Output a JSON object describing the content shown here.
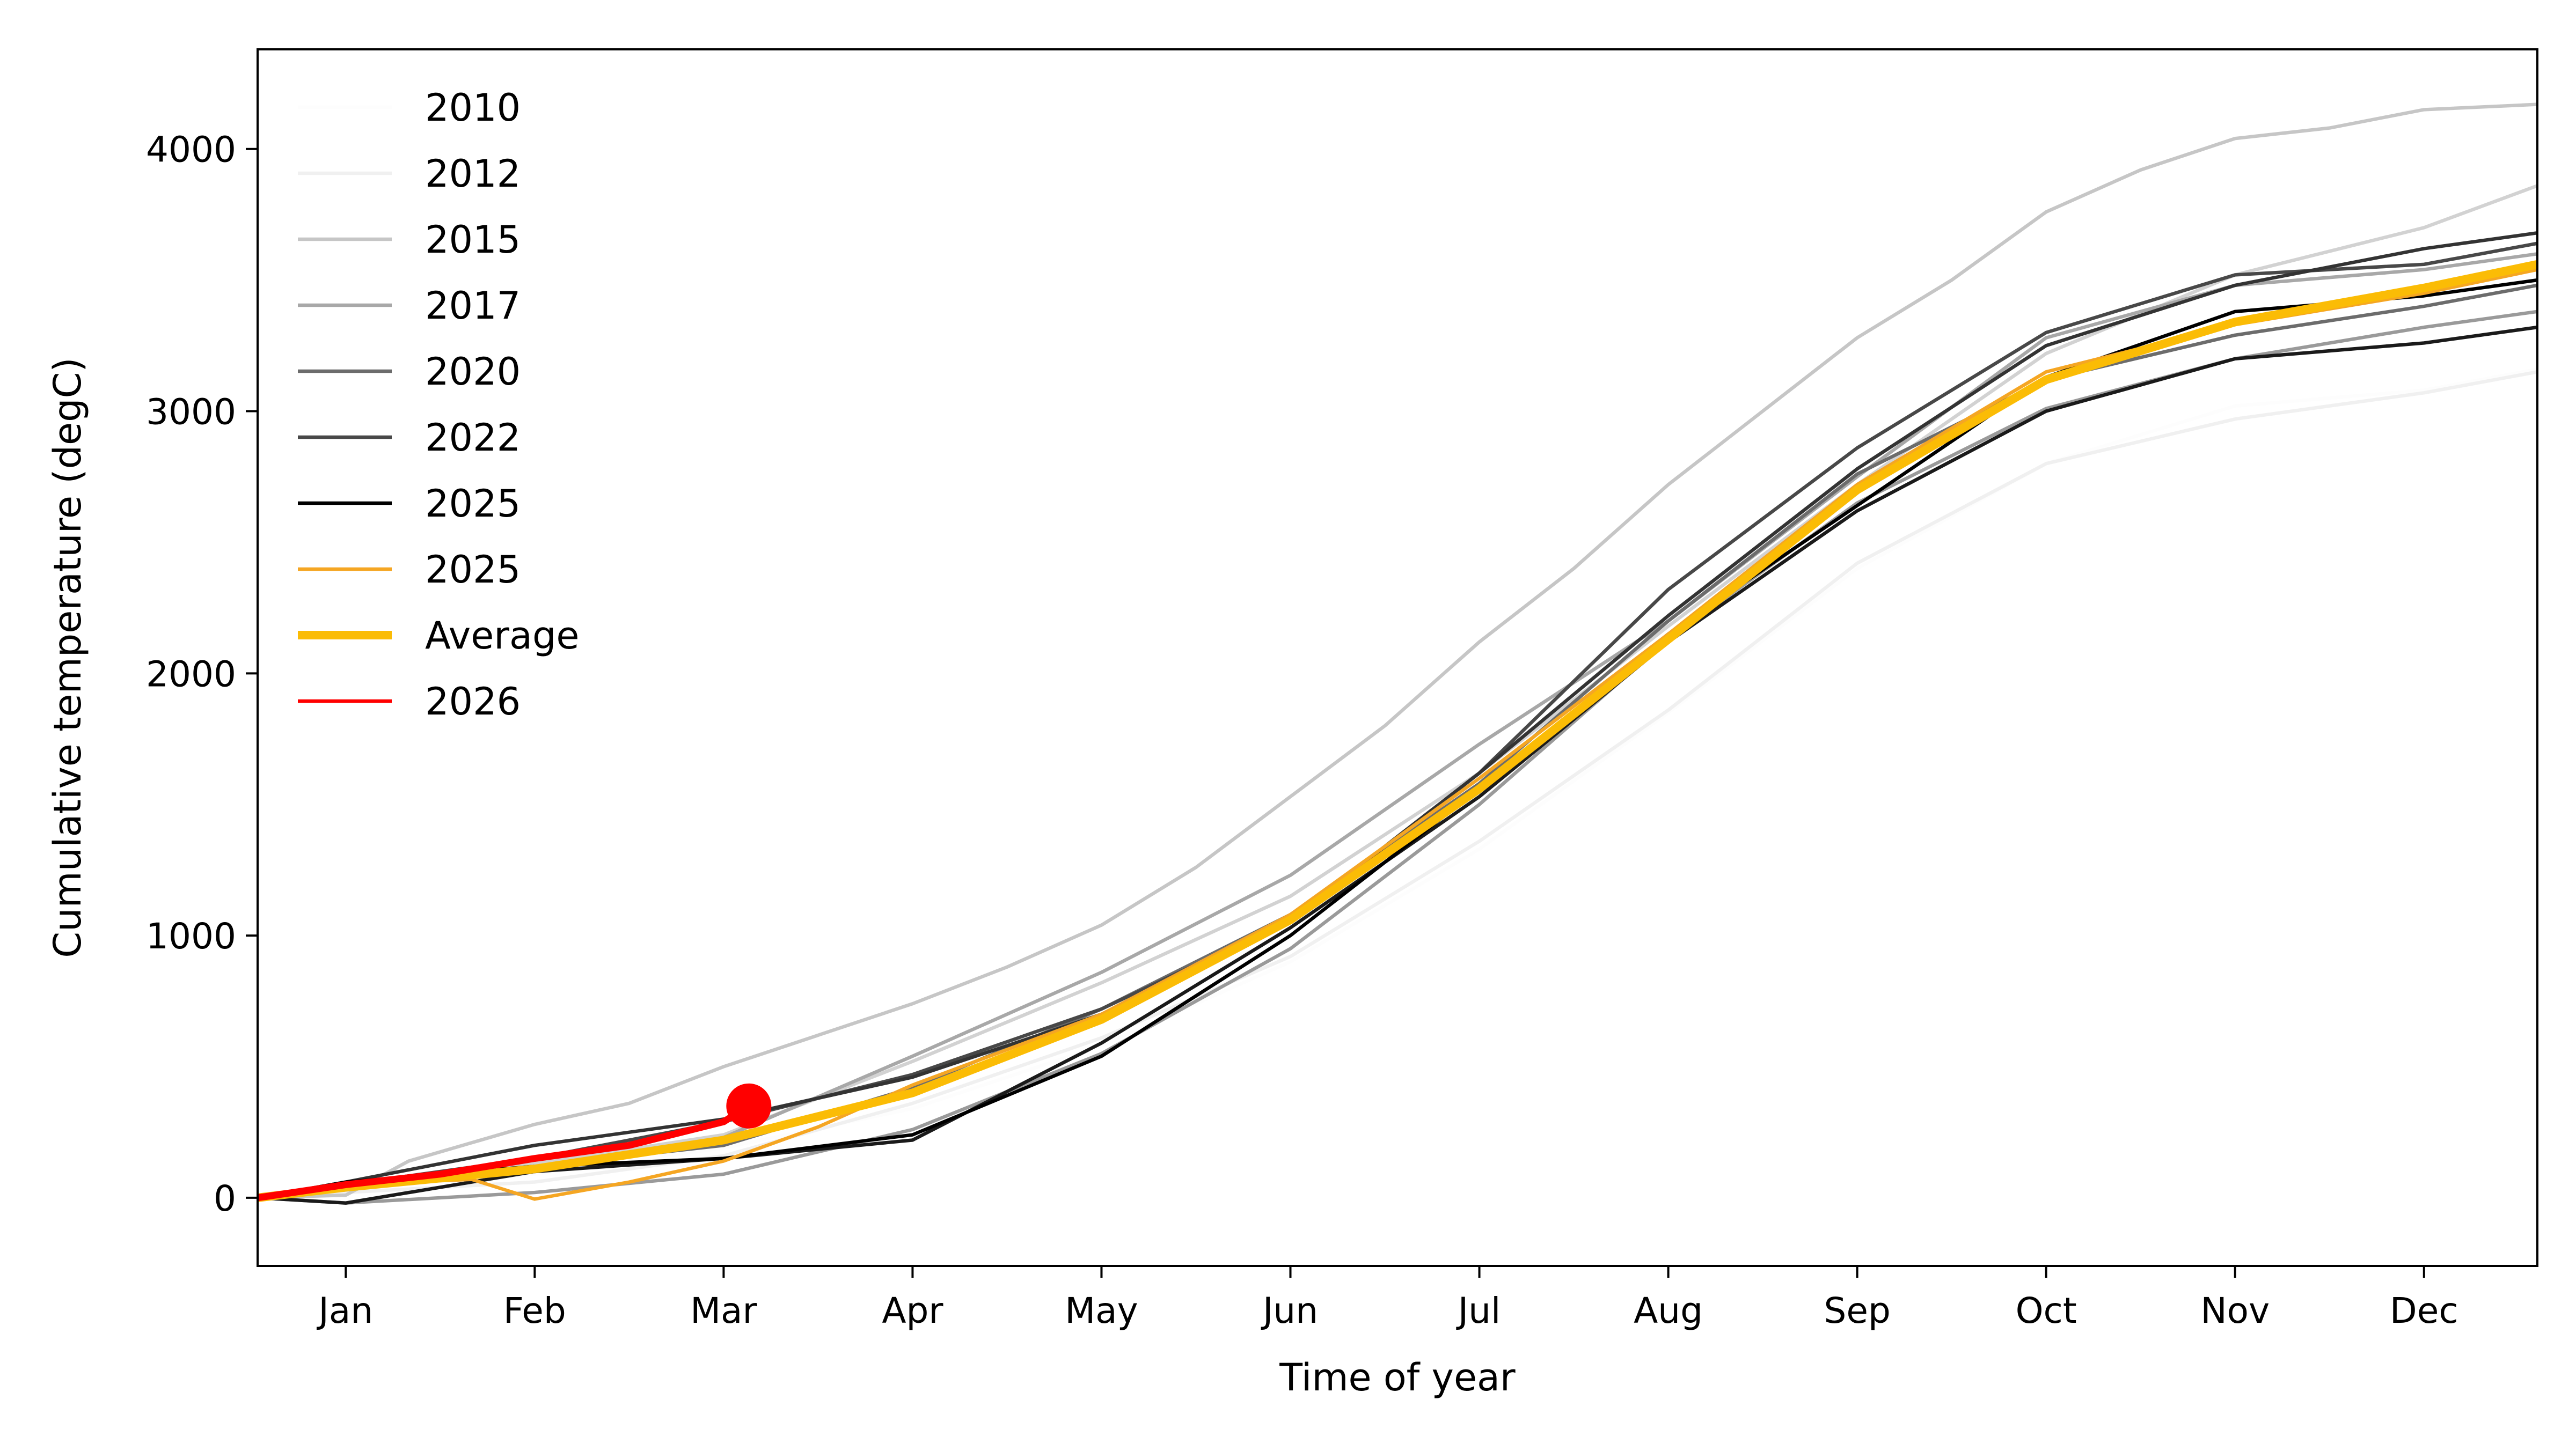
{
  "chart_data": {
    "type": "line",
    "title": "",
    "xlabel": "Time of year",
    "ylabel": "Cumulative temperature (degC)",
    "x_unit": "day of year",
    "xlim": [
      -14,
      348
    ],
    "ylim": [
      -260,
      4380
    ],
    "x_ticks": [
      {
        "label": "Jan",
        "day": 0
      },
      {
        "label": "Feb",
        "day": 30
      },
      {
        "label": "Mar",
        "day": 60
      },
      {
        "label": "Apr",
        "day": 90
      },
      {
        "label": "May",
        "day": 120
      },
      {
        "label": "Jun",
        "day": 150
      },
      {
        "label": "Jul",
        "day": 180
      },
      {
        "label": "Aug",
        "day": 210
      },
      {
        "label": "Sep",
        "day": 240
      },
      {
        "label": "Oct",
        "day": 270
      },
      {
        "label": "Nov",
        "day": 300
      },
      {
        "label": "Dec",
        "day": 330
      }
    ],
    "y_ticks": [
      0,
      1000,
      2000,
      3000,
      4000
    ],
    "grid": false,
    "legend_position": "upper-left",
    "series": [
      {
        "name": "2010",
        "color": "#fdfdfd",
        "width": 2,
        "points": [
          [
            -14,
            0
          ],
          [
            0,
            30
          ],
          [
            30,
            90
          ],
          [
            60,
            190
          ],
          [
            90,
            340
          ],
          [
            120,
            580
          ],
          [
            150,
            900
          ],
          [
            180,
            1330
          ],
          [
            210,
            1850
          ],
          [
            240,
            2400
          ],
          [
            270,
            2800
          ],
          [
            300,
            3020
          ],
          [
            330,
            3080
          ],
          [
            348,
            3160
          ]
        ]
      },
      {
        "name": "2012",
        "color": "#f0f0f0",
        "width": 2,
        "points": [
          [
            -14,
            0
          ],
          [
            0,
            20
          ],
          [
            30,
            60
          ],
          [
            60,
            160
          ],
          [
            90,
            360
          ],
          [
            120,
            610
          ],
          [
            150,
            920
          ],
          [
            180,
            1360
          ],
          [
            210,
            1860
          ],
          [
            240,
            2420
          ],
          [
            270,
            2800
          ],
          [
            300,
            2970
          ],
          [
            330,
            3070
          ],
          [
            348,
            3150
          ]
        ]
      },
      {
        "name": "2015",
        "color": "#c6c6c6",
        "width": 2,
        "points": [
          [
            -14,
            0
          ],
          [
            0,
            10
          ],
          [
            10,
            140
          ],
          [
            30,
            280
          ],
          [
            45,
            360
          ],
          [
            60,
            500
          ],
          [
            75,
            620
          ],
          [
            90,
            740
          ],
          [
            105,
            880
          ],
          [
            120,
            1040
          ],
          [
            135,
            1260
          ],
          [
            150,
            1530
          ],
          [
            165,
            1800
          ],
          [
            180,
            2120
          ],
          [
            195,
            2400
          ],
          [
            210,
            2720
          ],
          [
            225,
            3000
          ],
          [
            240,
            3280
          ],
          [
            255,
            3500
          ],
          [
            270,
            3760
          ],
          [
            285,
            3920
          ],
          [
            300,
            4040
          ],
          [
            315,
            4080
          ],
          [
            330,
            4150
          ],
          [
            348,
            4170
          ]
        ]
      },
      {
        "name": "2015",
        "color": "#d2d2d2",
        "width": 2,
        "points": [
          [
            -14,
            0
          ],
          [
            0,
            30
          ],
          [
            30,
            130
          ],
          [
            60,
            240
          ],
          [
            90,
            520
          ],
          [
            120,
            820
          ],
          [
            150,
            1150
          ],
          [
            180,
            1620
          ],
          [
            210,
            2180
          ],
          [
            240,
            2720
          ],
          [
            270,
            3220
          ],
          [
            300,
            3520
          ],
          [
            330,
            3700
          ],
          [
            348,
            3860
          ]
        ]
      },
      {
        "name": "2017",
        "color": "#a8a8a8",
        "width": 2,
        "points": [
          [
            -14,
            0
          ],
          [
            0,
            30
          ],
          [
            30,
            110
          ],
          [
            60,
            230
          ],
          [
            90,
            540
          ],
          [
            120,
            860
          ],
          [
            150,
            1230
          ],
          [
            180,
            1730
          ],
          [
            210,
            2200
          ],
          [
            240,
            2750
          ],
          [
            270,
            3280
          ],
          [
            300,
            3480
          ],
          [
            330,
            3540
          ],
          [
            348,
            3600
          ]
        ]
      },
      {
        "name": "2017",
        "color": "#9a9a9a",
        "width": 2,
        "points": [
          [
            -14,
            0
          ],
          [
            0,
            -20
          ],
          [
            30,
            20
          ],
          [
            60,
            90
          ],
          [
            90,
            260
          ],
          [
            120,
            550
          ],
          [
            150,
            950
          ],
          [
            180,
            1500
          ],
          [
            210,
            2130
          ],
          [
            240,
            2650
          ],
          [
            270,
            3010
          ],
          [
            300,
            3200
          ],
          [
            330,
            3320
          ],
          [
            348,
            3380
          ]
        ]
      },
      {
        "name": "2020",
        "color": "#6c6c6c",
        "width": 2,
        "points": [
          [
            -14,
            0
          ],
          [
            0,
            40
          ],
          [
            30,
            120
          ],
          [
            60,
            200
          ],
          [
            90,
            420
          ],
          [
            120,
            720
          ],
          [
            150,
            1080
          ],
          [
            180,
            1580
          ],
          [
            210,
            2200
          ],
          [
            240,
            2760
          ],
          [
            270,
            3120
          ],
          [
            300,
            3290
          ],
          [
            330,
            3400
          ],
          [
            348,
            3480
          ]
        ]
      },
      {
        "name": "2022",
        "color": "#484848",
        "width": 2,
        "points": [
          [
            -14,
            0
          ],
          [
            0,
            50
          ],
          [
            30,
            150
          ],
          [
            60,
            290
          ],
          [
            90,
            470
          ],
          [
            120,
            720
          ],
          [
            150,
            1060
          ],
          [
            180,
            1620
          ],
          [
            210,
            2320
          ],
          [
            240,
            2860
          ],
          [
            270,
            3300
          ],
          [
            300,
            3520
          ],
          [
            330,
            3560
          ],
          [
            348,
            3640
          ]
        ]
      },
      {
        "name": "2022",
        "color": "#333333",
        "width": 2,
        "points": [
          [
            -14,
            0
          ],
          [
            0,
            60
          ],
          [
            30,
            200
          ],
          [
            60,
            300
          ],
          [
            90,
            460
          ],
          [
            120,
            700
          ],
          [
            150,
            1060
          ],
          [
            180,
            1620
          ],
          [
            210,
            2220
          ],
          [
            240,
            2780
          ],
          [
            270,
            3250
          ],
          [
            300,
            3480
          ],
          [
            330,
            3620
          ],
          [
            348,
            3680
          ]
        ]
      },
      {
        "name": "2025",
        "color": "#1a1a1a",
        "width": 2,
        "points": [
          [
            -14,
            0
          ],
          [
            0,
            -20
          ],
          [
            30,
            100
          ],
          [
            60,
            150
          ],
          [
            90,
            220
          ],
          [
            120,
            590
          ],
          [
            150,
            1030
          ],
          [
            180,
            1530
          ],
          [
            210,
            2120
          ],
          [
            240,
            2620
          ],
          [
            270,
            3000
          ],
          [
            300,
            3200
          ],
          [
            330,
            3260
          ],
          [
            348,
            3320
          ]
        ]
      },
      {
        "name": "2025",
        "color": "#000000",
        "width": 2,
        "points": [
          [
            -14,
            0
          ],
          [
            0,
            60
          ],
          [
            30,
            120
          ],
          [
            60,
            150
          ],
          [
            90,
            240
          ],
          [
            120,
            540
          ],
          [
            150,
            1000
          ],
          [
            180,
            1560
          ],
          [
            210,
            2150
          ],
          [
            240,
            2640
          ],
          [
            270,
            3130
          ],
          [
            300,
            3380
          ],
          [
            330,
            3440
          ],
          [
            348,
            3500
          ]
        ]
      },
      {
        "name": "2025",
        "color": "#f5a623",
        "width": 2,
        "points": [
          [
            -14,
            0
          ],
          [
            0,
            50
          ],
          [
            20,
            70
          ],
          [
            30,
            -5
          ],
          [
            45,
            60
          ],
          [
            60,
            140
          ],
          [
            75,
            270
          ],
          [
            90,
            430
          ],
          [
            120,
            700
          ],
          [
            150,
            1080
          ],
          [
            180,
            1600
          ],
          [
            210,
            2150
          ],
          [
            240,
            2720
          ],
          [
            270,
            3150
          ],
          [
            300,
            3330
          ],
          [
            330,
            3450
          ],
          [
            348,
            3540
          ]
        ]
      },
      {
        "name": "Average",
        "color": "#fbbc05",
        "width": 5,
        "points": [
          [
            -14,
            0
          ],
          [
            0,
            40
          ],
          [
            30,
            110
          ],
          [
            60,
            220
          ],
          [
            90,
            400
          ],
          [
            120,
            680
          ],
          [
            150,
            1060
          ],
          [
            180,
            1560
          ],
          [
            210,
            2130
          ],
          [
            240,
            2700
          ],
          [
            270,
            3120
          ],
          [
            300,
            3340
          ],
          [
            330,
            3470
          ],
          [
            348,
            3560
          ]
        ]
      },
      {
        "name": "2026",
        "color": "#ff0000",
        "width": 4,
        "points": [
          [
            -14,
            0
          ],
          [
            0,
            50
          ],
          [
            15,
            90
          ],
          [
            30,
            150
          ],
          [
            45,
            200
          ],
          [
            60,
            290
          ],
          [
            64,
            350
          ]
        ],
        "marker": [
          64,
          350
        ]
      }
    ],
    "legend": [
      {
        "label": "2010",
        "color": "#fdfdfd",
        "width": 2
      },
      {
        "label": "2012",
        "color": "#f0f0f0",
        "width": 2
      },
      {
        "label": "2015",
        "color": "#c6c6c6",
        "width": 2
      },
      {
        "label": "2017",
        "color": "#a8a8a8",
        "width": 2
      },
      {
        "label": "2020",
        "color": "#6c6c6c",
        "width": 2
      },
      {
        "label": "2022",
        "color": "#484848",
        "width": 2
      },
      {
        "label": "2025",
        "color": "#000000",
        "width": 2
      },
      {
        "label": "2025",
        "color": "#f5a623",
        "width": 2
      },
      {
        "label": "Average",
        "color": "#fbbc05",
        "width": 5
      },
      {
        "label": "2026",
        "color": "#ff0000",
        "width": 2
      }
    ]
  }
}
